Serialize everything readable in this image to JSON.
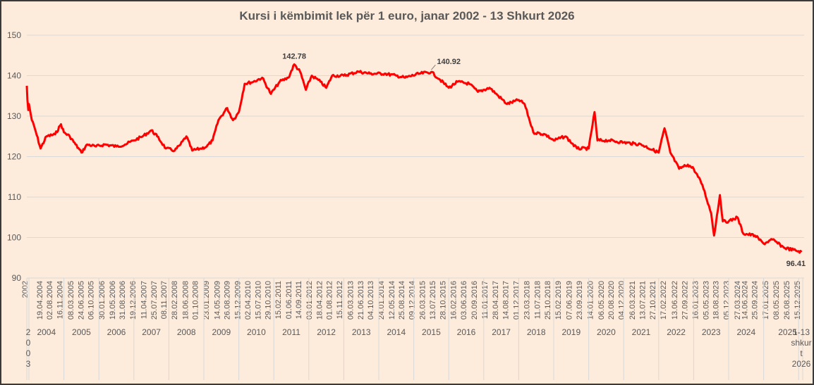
{
  "chart_data": {
    "type": "line",
    "title": "Kursi i këmbimit lek për 1 euro, janar 2002 - 13 Shkurt 2026",
    "xlabel": "",
    "ylabel": "",
    "ylim": [
      90,
      150
    ],
    "yticks": [
      90,
      100,
      110,
      120,
      130,
      140,
      150
    ],
    "grid": true,
    "line_color": "#ff0000",
    "x_tick_labels": [
      "2002",
      "19.04.2004",
      "02.08.2004",
      "16.11.2004",
      "08.03.2005",
      "24.06.2005",
      "06.10.2005",
      "30.01.2006",
      "19.05.2006",
      "31.08.2006",
      "19.12.2006",
      "11.04.2007",
      "25.07.2007",
      "08.11.2007",
      "28.02.2008",
      "18.06.2008",
      "01.10.2008",
      "23.01.2009",
      "14.05.2009",
      "26.08.2009",
      "15.12.2009",
      "02.04.2010",
      "15.07.2010",
      "29.10.2010",
      "15.02.2011",
      "01.06.2011",
      "14.09.2011",
      "03.01.2012",
      "18.04.2012",
      "01.08.2012",
      "15.11.2012",
      "06.03.2013",
      "21.06.2013",
      "04.10.2013",
      "24.01.2014",
      "12.05.2014",
      "25.08.2014",
      "09.12.2014",
      "26.03.2015",
      "13.07.2015",
      "28.10.2015",
      "16.02.2016",
      "03.06.2016",
      "20.09.2016",
      "11.01.2017",
      "28.04.2017",
      "14.08.2017",
      "01.12.2017",
      "23.03.2018",
      "11.07.2018",
      "25.10.2018",
      "15.02.2019",
      "07.06.2019",
      "23.09.2019",
      "14.01.2020",
      "06.05.2020",
      "20.08.2020",
      "04.12.2020",
      "26.03.2021",
      "13.07.2021",
      "27.10.2021",
      "17.02.2022",
      "13.06.2022",
      "27.09.2022",
      "16.01.2023",
      "05.05.2023",
      "18.08.2023",
      "05.12.2023",
      "27.03.2024",
      "14.06.2024",
      "25.09.2024",
      "17.01.2025",
      "08.05.2025",
      "26.08.2025",
      "15.12.2025"
    ],
    "year_groups": [
      "2003",
      "2004",
      "2005",
      "2006",
      "2007",
      "2008",
      "2009",
      "2010",
      "2011",
      "2012",
      "2013",
      "2014",
      "2015",
      "2016",
      "2017",
      "2018",
      "2019",
      "2020",
      "2021",
      "2022",
      "2023",
      "2024",
      "2025",
      "1-13 shkurt 2026"
    ],
    "series": [
      {
        "points": [
          [
            "2002-01",
            137.5
          ],
          [
            "2002-08",
            134
          ],
          [
            "2003-06",
            131.5
          ],
          [
            "2004-01",
            133
          ],
          [
            "2004-02",
            129
          ],
          [
            "2004-03",
            127
          ],
          [
            "2004-05",
            122
          ],
          [
            "2004-07",
            125
          ],
          [
            "2004-10",
            125.5
          ],
          [
            "2004-12",
            128
          ],
          [
            "2005-01",
            126
          ],
          [
            "2005-03",
            125
          ],
          [
            "2005-05",
            123
          ],
          [
            "2005-07",
            121
          ],
          [
            "2005-09",
            123
          ],
          [
            "2005-12",
            122.5
          ],
          [
            "2006-03",
            123
          ],
          [
            "2006-07",
            122.5
          ],
          [
            "2006-10",
            123
          ],
          [
            "2007-01",
            124
          ],
          [
            "2007-04",
            125
          ],
          [
            "2007-07",
            126.5
          ],
          [
            "2007-09",
            125
          ],
          [
            "2007-12",
            122
          ],
          [
            "2008-03",
            121.5
          ],
          [
            "2008-05",
            123
          ],
          [
            "2008-07",
            125
          ],
          [
            "2008-09",
            121.5
          ],
          [
            "2008-12",
            122
          ],
          [
            "2009-02",
            122.5
          ],
          [
            "2009-04",
            124
          ],
          [
            "2009-06",
            129
          ],
          [
            "2009-09",
            132
          ],
          [
            "2009-11",
            129
          ],
          [
            "2010-01",
            131
          ],
          [
            "2010-03",
            138
          ],
          [
            "2010-06",
            138.5
          ],
          [
            "2010-09",
            139.5
          ],
          [
            "2010-12",
            135.5
          ],
          [
            "2011-03",
            138.5
          ],
          [
            "2011-06",
            139.5
          ],
          [
            "2011-08",
            142.78
          ],
          [
            "2011-10",
            141
          ],
          [
            "2011-12",
            136.5
          ],
          [
            "2012-02",
            140
          ],
          [
            "2012-05",
            138.5
          ],
          [
            "2012-07",
            137
          ],
          [
            "2012-09",
            140
          ],
          [
            "2013-01",
            140
          ],
          [
            "2013-06",
            141
          ],
          [
            "2013-10",
            140.5
          ],
          [
            "2014-03",
            140.5
          ],
          [
            "2014-07",
            140
          ],
          [
            "2014-10",
            139.5
          ],
          [
            "2015-03",
            140.5
          ],
          [
            "2015-07",
            140.92
          ],
          [
            "2015-10",
            139
          ],
          [
            "2016-01",
            137
          ],
          [
            "2016-04",
            138.5
          ],
          [
            "2016-08",
            138
          ],
          [
            "2016-11",
            136
          ],
          [
            "2017-03",
            137
          ],
          [
            "2017-06",
            135
          ],
          [
            "2017-09",
            133
          ],
          [
            "2018-01",
            134
          ],
          [
            "2018-03",
            133
          ],
          [
            "2018-06",
            126
          ],
          [
            "2018-10",
            125.5
          ],
          [
            "2019-01",
            124
          ],
          [
            "2019-05",
            125
          ],
          [
            "2019-09",
            122
          ],
          [
            "2020-01",
            122
          ],
          [
            "2020-03",
            131
          ],
          [
            "2020-04",
            124
          ],
          [
            "2020-08",
            124
          ],
          [
            "2021-01",
            123.5
          ],
          [
            "2021-07",
            123
          ],
          [
            "2022-01",
            121
          ],
          [
            "2022-03",
            127
          ],
          [
            "2022-05",
            121
          ],
          [
            "2022-08",
            117
          ],
          [
            "2022-11",
            118
          ],
          [
            "2023-01",
            117
          ],
          [
            "2023-04",
            113
          ],
          [
            "2023-07",
            106
          ],
          [
            "2023-08",
            100.5
          ],
          [
            "2023-10",
            110.5
          ],
          [
            "2023-11",
            104
          ],
          [
            "2024-01",
            104
          ],
          [
            "2024-04",
            105
          ],
          [
            "2024-06",
            101
          ],
          [
            "2024-10",
            100.5
          ],
          [
            "2025-01",
            98.5
          ],
          [
            "2025-04",
            99.5
          ],
          [
            "2025-08",
            97.5
          ],
          [
            "2025-12",
            96.8
          ],
          [
            "2026-02",
            96.41
          ]
        ]
      }
    ],
    "annotations": [
      {
        "label": "142.78",
        "x": "2011-08",
        "y": 142.78
      },
      {
        "label": "140.92",
        "x": "2015-07",
        "y": 140.92
      },
      {
        "label": "96.41",
        "x": "2026-02",
        "y": 96.41
      }
    ]
  }
}
